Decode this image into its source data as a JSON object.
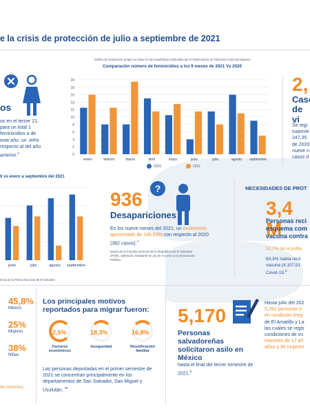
{
  "header": {
    "title": "e la crisis de protección de julio a septiembre de 2021"
  },
  "main_chart": {
    "note": "Gráfico de elaboración propia con base en las estadísticas publicadas por el Observatorio de Violencia Contra las Mujeres",
    "title": "Comparación número de feminicidios a los 9 meses de 2021 Vs 2020",
    "legend": [
      "2020",
      "2021"
    ],
    "colors": {
      "2020": "#2a64b5",
      "2021": "#f0963a"
    }
  },
  "chart_data": [
    {
      "type": "bar",
      "title": "Comparación número de feminicidios a los 9 meses de 2021 Vs 2020",
      "categories": [
        "enero",
        "febrero",
        "marzo",
        "abril",
        "mayo",
        "junio",
        "julio",
        "agosto",
        "septiembre"
      ],
      "series": [
        {
          "name": "2020",
          "values": [
            12.5,
            8,
            8,
            15,
            10.5,
            4,
            11.5,
            16,
            9
          ]
        },
        {
          "name": "2021",
          "values": [
            16,
            12.5,
            19.5,
            11.5,
            13.5,
            11.5,
            8,
            11,
            5
          ]
        }
      ],
      "ylim": [
        0,
        20
      ],
      "yticks": [
        0,
        2,
        4,
        6,
        8,
        10,
        12,
        14,
        16,
        18,
        20
      ],
      "grid": true,
      "legend": "bottom"
    },
    {
      "type": "bar",
      "title": "0 vs enero a septiembre del 2021",
      "categories": [
        "junio",
        "julio",
        "agosto",
        "septiembre"
      ],
      "series": [
        {
          "name": "2020",
          "values": [
            58,
            75,
            85,
            90
          ]
        },
        {
          "name": "2021",
          "values": [
            47,
            60,
            20,
            60
          ]
        }
      ],
      "ylim": [
        0,
        100
      ],
      "grid": true
    }
  ],
  "left_block": {
    "heading_partial": "os",
    "text": "os en el tercer 21, para un total 1 feminicidios a de este año. un ,44% respecto al del año anterior.",
    "note": "2"
  },
  "right_top": {
    "big_num": "2,",
    "label_1": "Caso",
    "label_2": "de vi",
    "text": "Se regi suponie 247,35 de 2020 nueve n casos d"
  },
  "second_chart": {
    "title": "0 vs enero a septiembre del 2021",
    "xlabels": [
      "junio",
      "julio",
      "agosto",
      "septiembre"
    ],
    "source": "encia de la Policía Nacional de El Salvador"
  },
  "desapariciones": {
    "number": "936",
    "label": "Desapariciones",
    "text_1": "En los nueve meses del 2021, un",
    "text_2": "incremento aproximado de 145,03%",
    "text_3": "con respecto al 2020 (382 casos).",
    "footnote": "4",
    "source": "Datos de la Fiscalía General de la República de El Salvador (FGR), obtenidos mediante la Ley de Acceso a la Información Pública."
  },
  "necesidades": {
    "title": "NECESIDADES DE PROT",
    "big": "3,4 M",
    "text_1": "Personas reci",
    "text_2": "esquema com",
    "text_3": "vacuna contra",
    "pct": "52,7% de la pobla",
    "pct2": "63,3% había recil vacuna (4,107,51 Covid-19.",
    "fn": "6"
  },
  "migracion": {
    "heading": "Los principales motivos reportados para migrar fueron:",
    "motivos": [
      {
        "pct": "62,5%",
        "label": "Factores económicos"
      },
      {
        "pct": "18,3%",
        "label": "Inseguridad"
      },
      {
        "pct": "16,8%",
        "label": "Reunificación familiar"
      }
    ],
    "text": "Las personas deportadas en el primer semestre de 2021 se concentran principalmente en los departamentos de San Salvador, San Miguel y Usulután.",
    "fn": "v9"
  },
  "deportados": [
    {
      "pct": "45,8%",
      "label": "México"
    },
    {
      "pct": "25%",
      "label": "Mujeres"
    },
    {
      "pct": "38%",
      "label": "Niñas"
    }
  ],
  "deportados_footer": "de menores)",
  "asilo": {
    "number": "5,170",
    "text": "Personas salvadoreñas solicitaron asilo en México",
    "sub": "hasta el final del tercer trimestre de 2021.",
    "fn": "8"
  },
  "right_bottom": {
    "text_1": "Hasta julio del 202",
    "text_2": "5,281 personas e",
    "text_3": "en condición irreg",
    "text_4": "de El Amatillo y La",
    "text_5": "las cuales se regis",
    "text_6": "condiciones de vu",
    "text_7": "menores de 17 añ",
    "text_8": "años y 36 mujeres"
  }
}
